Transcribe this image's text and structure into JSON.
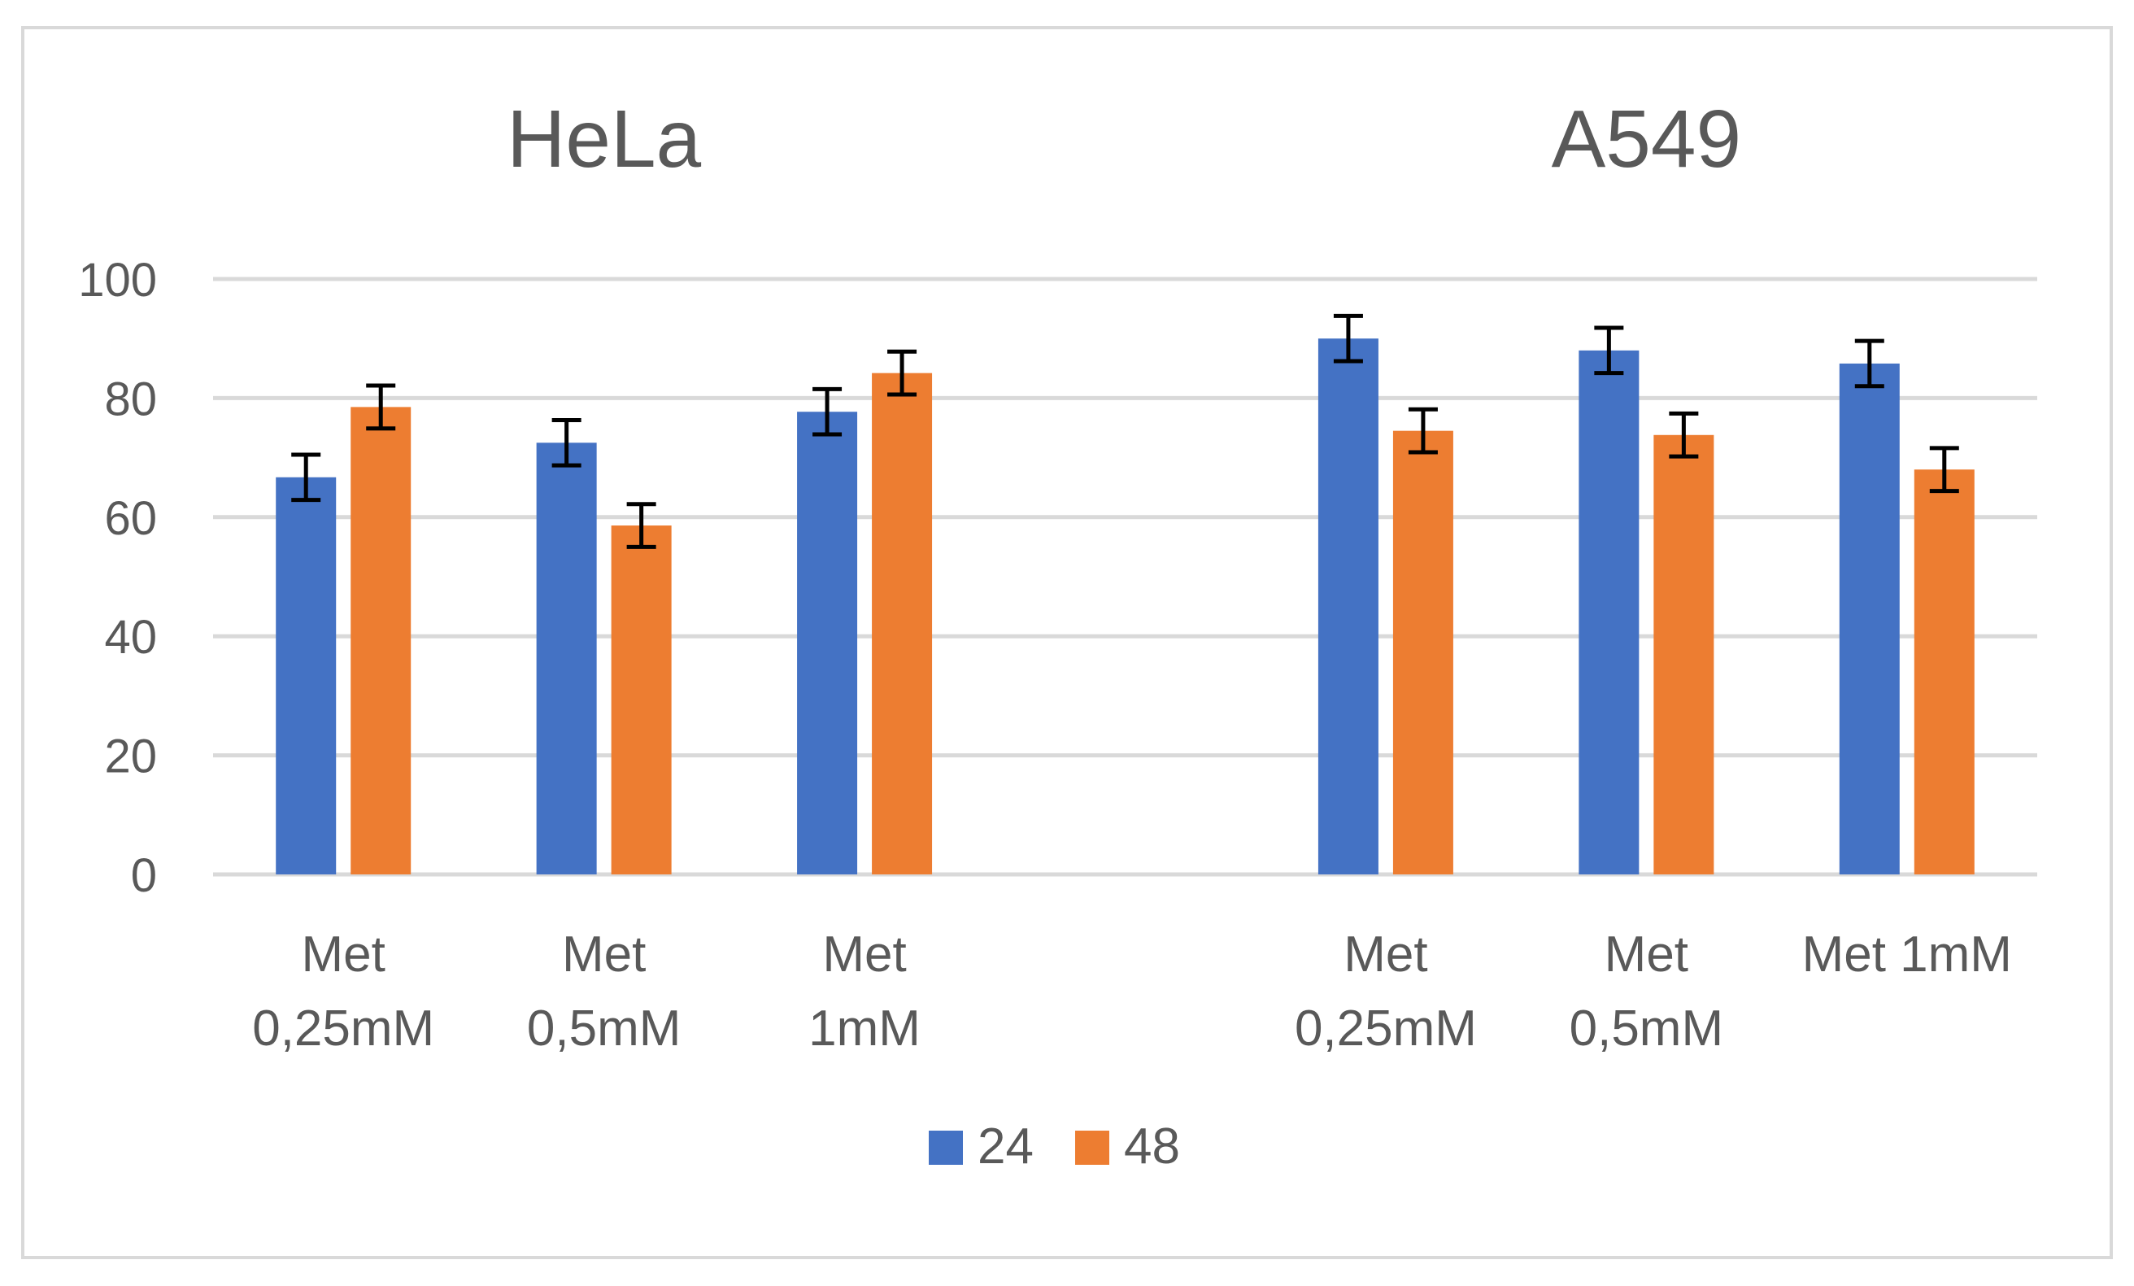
{
  "chart_data": {
    "type": "bar",
    "groups": [
      "HeLa",
      "A549"
    ],
    "categories": [
      {
        "group": "HeLa",
        "label": [
          "Met",
          "0,25mM"
        ]
      },
      {
        "group": "HeLa",
        "label": [
          "Met",
          "0,5mM"
        ]
      },
      {
        "group": "HeLa",
        "label": [
          "Met",
          "1mM"
        ]
      },
      {
        "group": "A549",
        "label": [
          "Met",
          "0,25mM"
        ]
      },
      {
        "group": "A549",
        "label": [
          "Met",
          "0,5mM"
        ]
      },
      {
        "group": "A549",
        "label": [
          "Met 1mM"
        ]
      }
    ],
    "series": [
      {
        "name": "24",
        "color": "#4472c4",
        "values": [
          66.7,
          72.5,
          77.7,
          90.0,
          88.0,
          85.8
        ],
        "errors": [
          3.8,
          3.8,
          3.8,
          3.8,
          3.8,
          3.8
        ]
      },
      {
        "name": "48",
        "color": "#ed7d31",
        "values": [
          78.5,
          58.6,
          84.2,
          74.5,
          73.8,
          68.0
        ],
        "errors": [
          3.6,
          3.6,
          3.6,
          3.6,
          3.6,
          3.6
        ]
      }
    ],
    "ylim": [
      0,
      100
    ],
    "yticks": [
      0,
      20,
      40,
      60,
      80,
      100
    ],
    "grid": true,
    "legend": "bottom-center"
  }
}
